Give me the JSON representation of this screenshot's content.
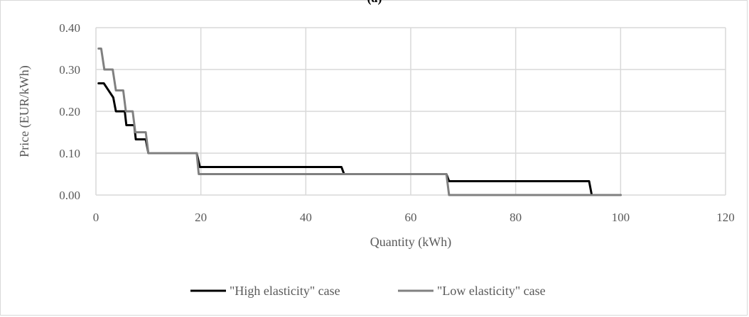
{
  "panel_label": "(a)",
  "chart_data": {
    "type": "line",
    "title": "",
    "xlabel": "Quantity (kWh)",
    "ylabel": "Price (EUR/kWh)",
    "xlim": [
      0,
      120
    ],
    "ylim": [
      0,
      0.4
    ],
    "xticks": [
      0,
      20,
      40,
      60,
      80,
      100,
      120
    ],
    "yticks": [
      0,
      0.1,
      0.2,
      0.3,
      0.4
    ],
    "xtick_labels": [
      "0",
      "20",
      "40",
      "60",
      "80",
      "100",
      "120"
    ],
    "ytick_labels": [
      "0.00",
      "0.10",
      "0.20",
      "0.30",
      "0.40"
    ],
    "grid": "major gridlines on both axes",
    "legend_position": "bottom",
    "series": [
      {
        "name": "\"High elasticity\" case",
        "color": "#000000",
        "x": [
          0.5,
          1.5,
          3.3,
          3.8,
          5.5,
          5.8,
          7.3,
          7.6,
          9.5,
          10.0,
          19.2,
          19.8,
          46.8,
          47.3,
          66.8,
          67.3,
          94.0,
          94.5,
          100.0
        ],
        "y": [
          0.267,
          0.267,
          0.233,
          0.2,
          0.2,
          0.167,
          0.167,
          0.133,
          0.133,
          0.1,
          0.1,
          0.067,
          0.067,
          0.05,
          0.05,
          0.033,
          0.033,
          0.0,
          0.0
        ]
      },
      {
        "name": "\"Low elasticity\" case",
        "color": "#808080",
        "x": [
          0.5,
          1.0,
          1.6,
          3.2,
          3.8,
          5.2,
          5.7,
          7.0,
          7.5,
          9.5,
          10.0,
          19.2,
          19.6,
          66.8,
          67.3,
          100.0
        ],
        "y": [
          0.35,
          0.35,
          0.3,
          0.3,
          0.25,
          0.25,
          0.2,
          0.2,
          0.15,
          0.15,
          0.1,
          0.1,
          0.05,
          0.05,
          0.0,
          0.0
        ]
      }
    ]
  }
}
